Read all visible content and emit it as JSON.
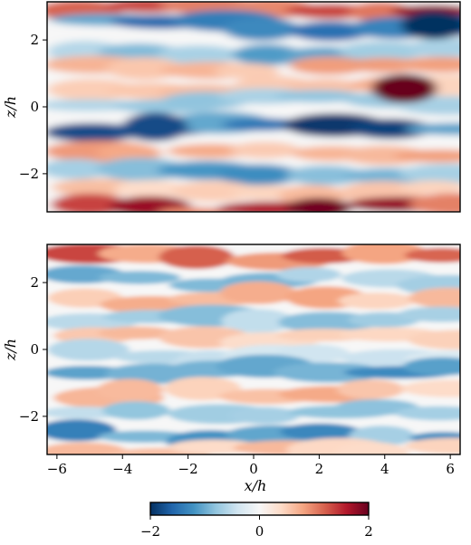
{
  "chart_data": [
    {
      "type": "heatmap",
      "panel": "top",
      "ylabel": "z/h",
      "xlim": [
        -6.3,
        6.3
      ],
      "ylim": [
        -3.14,
        3.14
      ],
      "yticks": [
        -2,
        0,
        2
      ],
      "yticklabels": [
        "−2",
        "0",
        "2"
      ],
      "colormap": "RdBu_r",
      "vmin": -2,
      "vmax": 2,
      "description_of_field": "streamwise-elongated streaks",
      "bands": [
        {
          "z": 2.95,
          "value": 1.6
        },
        {
          "z": 2.45,
          "value": -1.4
        },
        {
          "z": 1.6,
          "value": -1.0
        },
        {
          "z": 1.15,
          "value": 0.9
        },
        {
          "z": 0.55,
          "value": 0.8
        },
        {
          "z": 0.15,
          "value": -0.7
        },
        {
          "z": -0.6,
          "value": -1.7
        },
        {
          "z": -1.4,
          "value": 0.9
        },
        {
          "z": -2.0,
          "value": -1.1
        },
        {
          "z": -2.5,
          "value": 0.6
        },
        {
          "z": -3.0,
          "value": 1.7
        }
      ],
      "peaks": [
        {
          "x": 4.6,
          "z": 0.55,
          "value": 2.0
        },
        {
          "x": 5.5,
          "z": 2.45,
          "value": -2.0
        },
        {
          "x": -3.0,
          "z": -0.6,
          "value": -1.8
        }
      ]
    },
    {
      "type": "heatmap",
      "panel": "bottom",
      "xlabel": "x/h",
      "ylabel": "z/h",
      "xlim": [
        -6.3,
        6.3
      ],
      "ylim": [
        -3.14,
        3.14
      ],
      "xticks": [
        -6,
        -4,
        -2,
        0,
        2,
        4,
        6
      ],
      "xticklabels": [
        "−6",
        "−4",
        "−2",
        "0",
        "2",
        "4",
        "6"
      ],
      "yticks": [
        -2,
        0,
        2
      ],
      "yticklabels": [
        "−2",
        "0",
        "2"
      ],
      "colormap": "RdBu_r",
      "vmin": -2,
      "vmax": 2,
      "description_of_field": "small-scale streaks",
      "bands": [
        {
          "z": 2.8,
          "value": 1.2
        },
        {
          "z": 2.1,
          "value": -0.9
        },
        {
          "z": 1.5,
          "value": 0.7
        },
        {
          "z": 0.9,
          "value": -0.8
        },
        {
          "z": 0.4,
          "value": 0.6
        },
        {
          "z": -0.2,
          "value": -0.5
        },
        {
          "z": -0.6,
          "value": -1.5
        },
        {
          "z": -1.3,
          "value": 0.7
        },
        {
          "z": -1.9,
          "value": -0.8
        },
        {
          "z": -2.6,
          "value": -1.2
        },
        {
          "z": -3.0,
          "value": 0.6
        }
      ]
    }
  ],
  "colorbar": {
    "colormap": "RdBu_r",
    "min": -2,
    "max": 2,
    "ticks": [
      -2,
      0,
      2
    ],
    "ticklabels": [
      "−2",
      "0",
      "2"
    ],
    "colors": [
      "#053061",
      "#2166ac",
      "#4393c3",
      "#92c5de",
      "#d1e5f0",
      "#f7f7f7",
      "#fddbc7",
      "#f4a582",
      "#d6604d",
      "#b2182b",
      "#67001f"
    ]
  }
}
